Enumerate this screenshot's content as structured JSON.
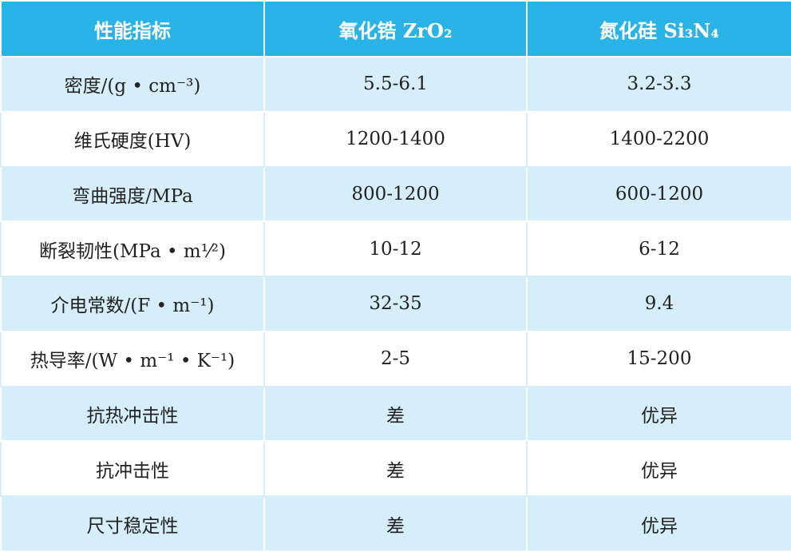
{
  "table": {
    "header": [
      "性能指标",
      "氧化锆 ZrO₂",
      "氮化硅 Si₃N₄"
    ],
    "rows": [
      [
        "密度/(g • cm⁻³)",
        "5.5-6.1",
        "3.2-3.3"
      ],
      [
        "维氏硬度(HV)",
        "1200-1400",
        "1400-2200"
      ],
      [
        "弯曲强度/MPa",
        "800-1200",
        "600-1200"
      ],
      [
        "断裂韧性(MPa • m¹⁄²)",
        "10-12",
        "6-12"
      ],
      [
        "介电常数/(F • m⁻¹)",
        "32-35",
        "9.4"
      ],
      [
        "热导率/(W • m⁻¹ • K⁻¹)",
        "2-5",
        "15-200"
      ],
      [
        "抗热冲击性",
        "差",
        "优异"
      ],
      [
        "抗冲击性",
        "差",
        "优异"
      ],
      [
        "尺寸稳定性",
        "差",
        "优异"
      ]
    ]
  }
}
